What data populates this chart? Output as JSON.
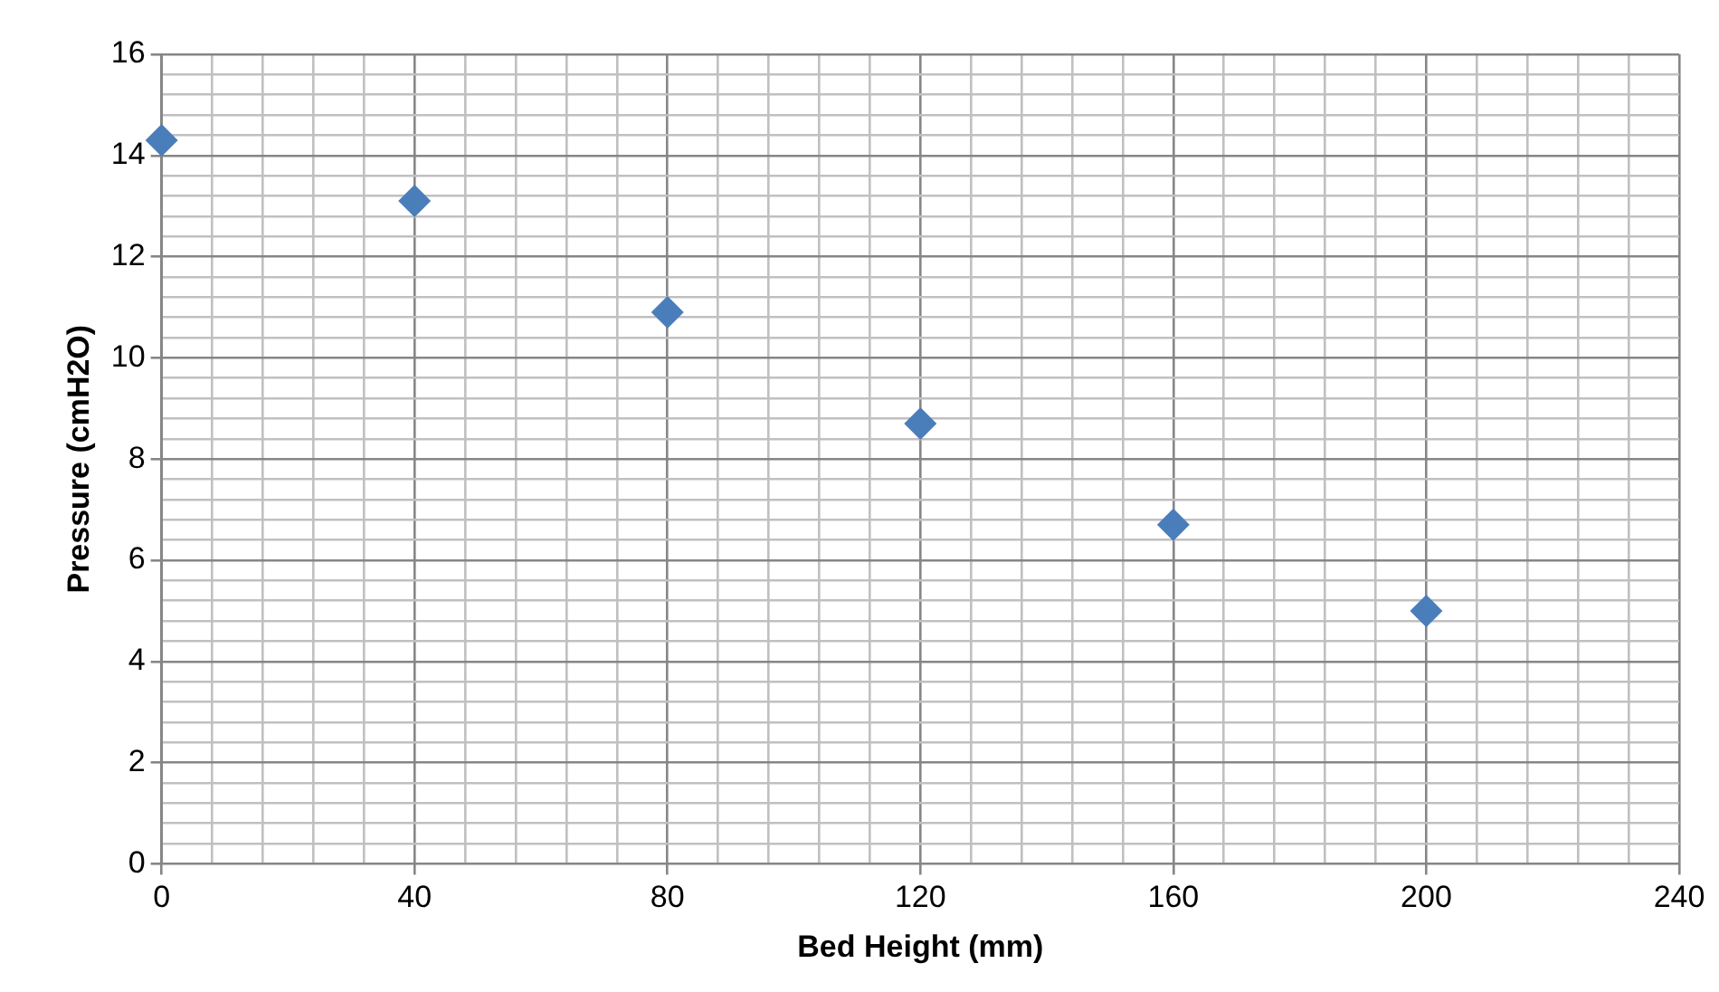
{
  "chart_data": {
    "type": "scatter",
    "xlabel": "Bed Height (mm)",
    "ylabel": "Pressure (cmH2O)",
    "x": [
      0,
      40,
      80,
      120,
      160,
      200
    ],
    "series": [
      {
        "color": "#4a7ebb",
        "values": [
          14.3,
          13.1,
          10.9,
          8.7,
          6.7,
          5.0
        ]
      }
    ],
    "marker": "diamond",
    "grid": true,
    "legend": false,
    "xlim": [
      0,
      240
    ],
    "ylim": [
      0,
      16
    ],
    "xticks": [
      0,
      {
        "value": 8,
        "label": null
      },
      {
        "value": 16,
        "label": null
      },
      {
        "value": 24,
        "label": null
      },
      {
        "value": 32,
        "label": null
      },
      40,
      {
        "value": 48,
        "label": null
      },
      {
        "value": 56,
        "label": null
      },
      {
        "value": 64,
        "label": null
      },
      {
        "value": 72,
        "label": null
      },
      80,
      {
        "value": 88,
        "label": null
      },
      {
        "value": 96,
        "label": null
      },
      {
        "value": 104,
        "label": null
      },
      {
        "value": 112,
        "label": null
      },
      120,
      {
        "value": 128,
        "label": null
      },
      {
        "value": 136,
        "label": null
      },
      {
        "value": 144,
        "label": null
      },
      {
        "value": 152,
        "label": null
      },
      160,
      {
        "value": 168,
        "label": null
      },
      {
        "value": 176,
        "label": null
      },
      {
        "value": 184,
        "label": null
      },
      {
        "value": 192,
        "label": null
      },
      200,
      {
        "value": 208,
        "label": null
      },
      {
        "value": 216,
        "label": null
      },
      {
        "value": 224,
        "label": null
      },
      {
        "value": 232,
        "label": null
      },
      240
    ],
    "yticks": [
      0,
      {
        "value": 0.4,
        "label": null
      },
      {
        "value": 0.8,
        "label": null
      },
      {
        "value": 1.2,
        "label": null
      },
      {
        "value": 1.6,
        "label": null
      },
      2,
      {
        "value": 2.4,
        "label": null
      },
      {
        "value": 2.8,
        "label": null
      },
      {
        "value": 3.2,
        "label": null
      },
      {
        "value": 3.6,
        "label": null
      },
      4,
      {
        "value": 4.4,
        "label": null
      },
      {
        "value": 4.8,
        "label": null
      },
      {
        "value": 5.2,
        "label": null
      },
      {
        "value": 5.6,
        "label": null
      },
      6,
      {
        "value": 6.4,
        "label": null
      },
      {
        "value": 6.8,
        "label": null
      },
      {
        "value": 7.2,
        "label": null
      },
      {
        "value": 7.6,
        "label": null
      },
      8,
      {
        "value": 8.4,
        "label": null
      },
      {
        "value": 8.8,
        "label": null
      },
      {
        "value": 9.2,
        "label": null
      },
      {
        "value": 9.6,
        "label": null
      },
      10,
      {
        "value": 10.4,
        "label": null
      },
      {
        "value": 10.8,
        "label": null
      },
      {
        "value": 11.2,
        "label": null
      },
      {
        "value": 11.6,
        "label": null
      },
      12,
      {
        "value": 12.4,
        "label": null
      },
      {
        "value": 12.8,
        "label": null
      },
      {
        "value": 13.2,
        "label": null
      },
      {
        "value": 13.6,
        "label": null
      },
      14,
      {
        "value": 14.4,
        "label": null
      },
      {
        "value": 14.8,
        "label": null
      },
      {
        "value": 15.2,
        "label": null
      },
      {
        "value": 15.6,
        "label": null
      },
      16
    ]
  }
}
